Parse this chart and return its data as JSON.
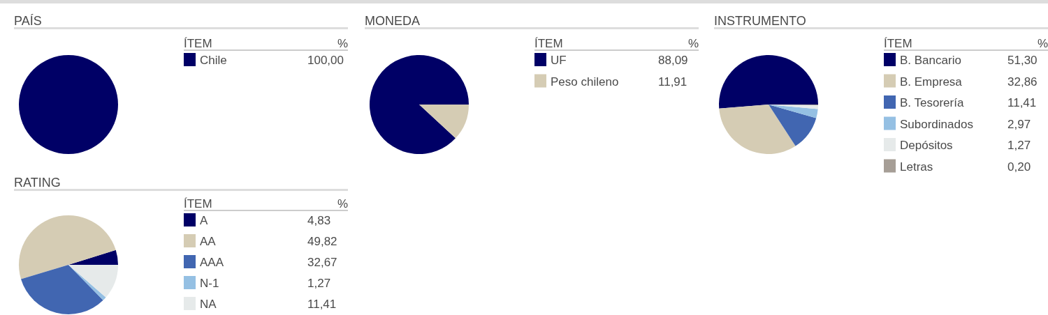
{
  "chart_data": [
    {
      "type": "pie",
      "title": "PAÍS",
      "legend_title": "ÍTEM",
      "annotations": [
        "%"
      ],
      "legend": "right",
      "categories": [
        "Chile"
      ],
      "values": [
        100
      ],
      "value_labels": [
        "100,00"
      ],
      "colors": [
        "#000066"
      ]
    },
    {
      "type": "pie",
      "title": "MONEDA",
      "legend_title": "ÍTEM",
      "annotations": [
        "%"
      ],
      "legend": "right",
      "categories": [
        "UF",
        "Peso chileno"
      ],
      "values": [
        88.09,
        11.91
      ],
      "value_labels": [
        "88,09",
        "11,91"
      ],
      "colors": [
        "#000066",
        "#d5ccb4"
      ]
    },
    {
      "type": "pie",
      "title": "INSTRUMENTO",
      "legend_title": "ÍTEM",
      "annotations": [
        "%"
      ],
      "legend": "right",
      "categories": [
        "B. Bancario",
        "B. Empresa",
        "B. Tesorería",
        "Subordinados",
        "Depósitos",
        "Letras"
      ],
      "values": [
        51.3,
        32.86,
        11.41,
        2.97,
        1.27,
        0.2
      ],
      "value_labels": [
        "51,30",
        "32,86",
        "11,41",
        "2,97",
        "1,27",
        "0,20"
      ],
      "colors": [
        "#000066",
        "#d5ccb4",
        "#4166b1",
        "#95c0e3",
        "#e6eaea",
        "#a69e96"
      ]
    },
    {
      "type": "pie",
      "title": "RATING",
      "legend_title": "ÍTEM",
      "annotations": [
        "%"
      ],
      "legend": "right",
      "categories": [
        "A",
        "AA",
        "AAA",
        "N-1",
        "NA"
      ],
      "values": [
        4.83,
        49.82,
        32.67,
        1.27,
        11.41
      ],
      "value_labels": [
        "4,83",
        "49,82",
        "32,67",
        "1,27",
        "11,41"
      ],
      "colors": [
        "#000066",
        "#d5ccb4",
        "#4166b1",
        "#95c0e3",
        "#e6eaea"
      ]
    }
  ]
}
